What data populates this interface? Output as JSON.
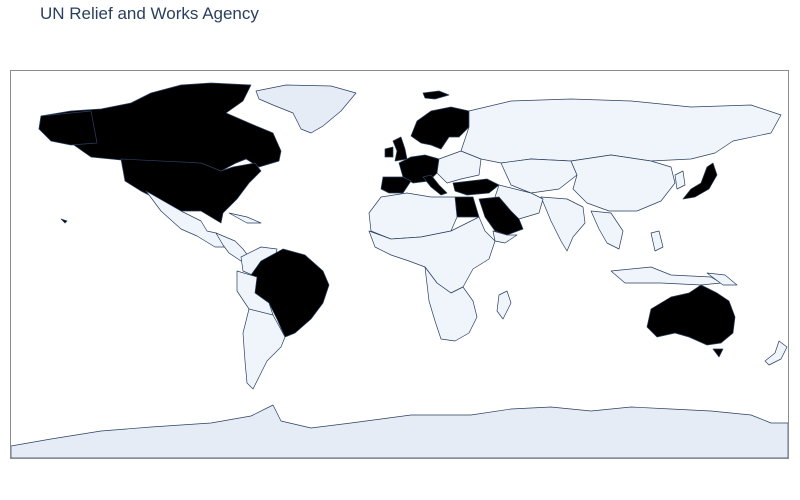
{
  "title": "UN Relief and Works Agency",
  "map": {
    "projection": "equirectangular",
    "colorscale": {
      "high": "#000000",
      "low": "#f0f5fc",
      "no_data": "#e5ecf6"
    },
    "highlighted_countries": [
      "United States",
      "Canada",
      "Brazil",
      "Australia",
      "Japan",
      "Norway",
      "Sweden",
      "Finland",
      "Denmark",
      "United Kingdom",
      "Ireland",
      "France",
      "Spain",
      "Portugal",
      "Germany",
      "Belgium",
      "Netherlands",
      "Switzerland",
      "Italy",
      "Turkey",
      "Egypt",
      "Saudi Arabia",
      "Kuwait",
      "United Arab Emirates",
      "Qatar",
      "Oman"
    ]
  }
}
